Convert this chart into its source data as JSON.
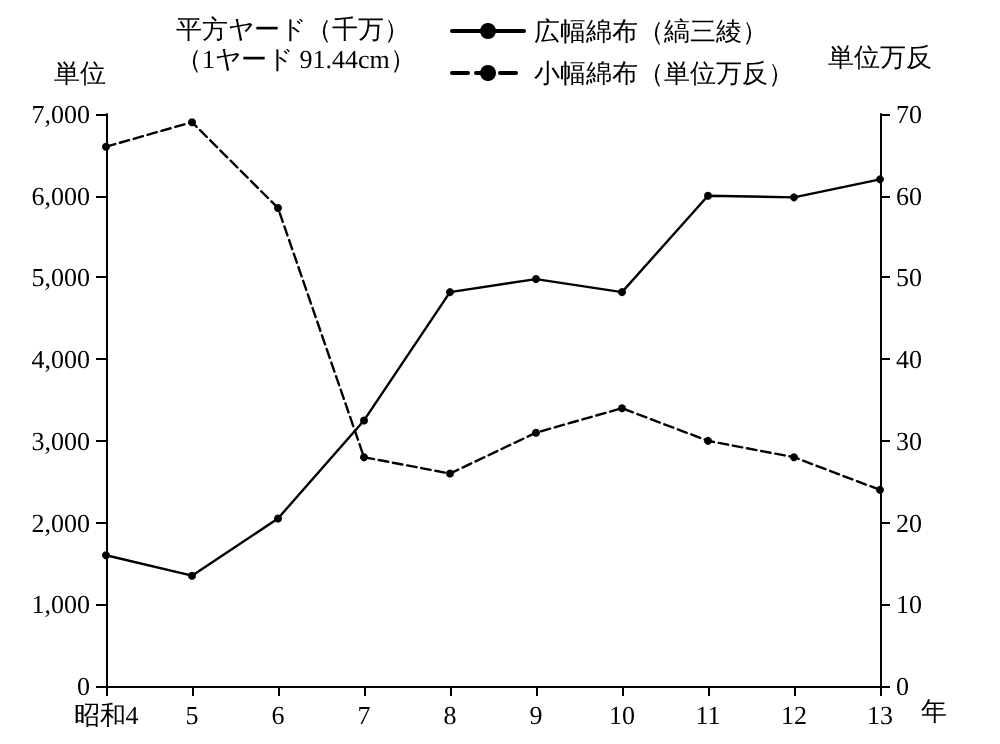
{
  "chart_data": {
    "type": "line",
    "ylabel": "単位",
    "y2label": "単位万反",
    "xlabel": "年",
    "annotations": [
      "平方ヤード（千万）",
      "（1ヤード 91.44cm）"
    ],
    "categories": [
      "昭和4",
      "5",
      "6",
      "7",
      "8",
      "9",
      "10",
      "11",
      "12",
      "13"
    ],
    "series": [
      {
        "name": "広幅綿布（縞三綾）",
        "color": "#000000",
        "line_style": "solid",
        "values": [
          1600,
          1350,
          2050,
          3250,
          4820,
          4980,
          4820,
          6000,
          5980,
          6200
        ]
      },
      {
        "name": "小幅綿布（単位万反）",
        "color": "#000000",
        "line_style": "dashed",
        "axis": "y2",
        "values": [
          66,
          69,
          58.5,
          28,
          26,
          31,
          34,
          30,
          28,
          24
        ]
      }
    ],
    "ylim": [
      0,
      7000
    ],
    "yticks": [
      0,
      {
        "value": 1000,
        "label": "1,000"
      },
      {
        "value": 2000,
        "label": "2,000"
      },
      {
        "value": 3000,
        "label": "3,000"
      },
      {
        "value": 4000,
        "label": "4,000"
      },
      {
        "value": 5000,
        "label": "5,000"
      },
      {
        "value": 6000,
        "label": "6,000"
      },
      {
        "value": 7000,
        "label": "7,000"
      }
    ],
    "y2lim": [
      0,
      70
    ],
    "y2ticks": [
      0,
      10,
      20,
      30,
      40,
      50,
      60,
      70
    ],
    "marker": "circle",
    "grid": false,
    "legend": "top"
  }
}
